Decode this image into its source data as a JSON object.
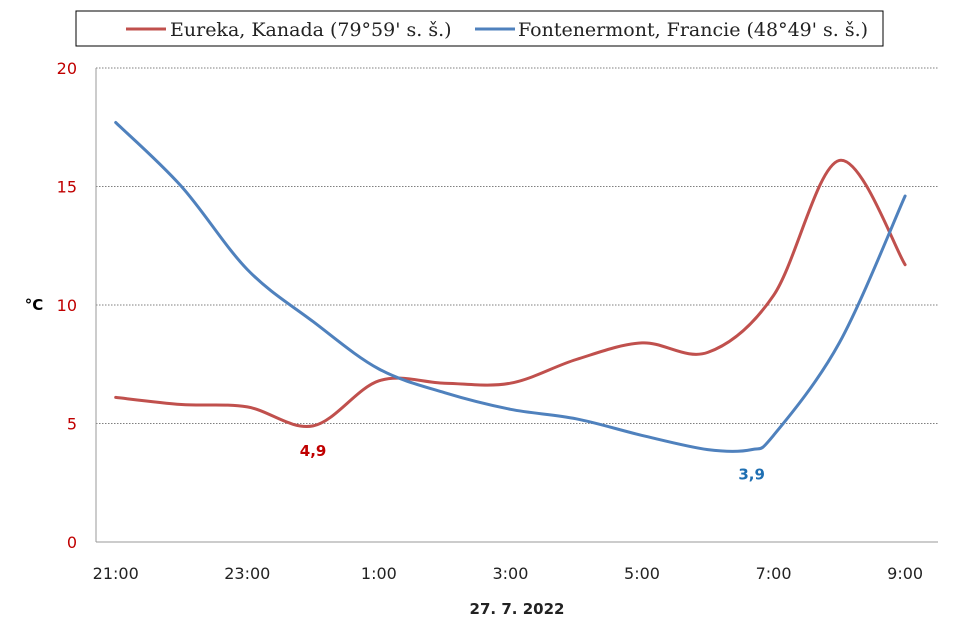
{
  "chart_data": {
    "type": "line",
    "title": "",
    "xlabel": "27. 7. 2022",
    "ylabel": "°C",
    "ylim": [
      0,
      20
    ],
    "yticks": [
      "0",
      "5",
      "10",
      "15",
      "20"
    ],
    "xlim_hours": [
      20.7,
      33.5
    ],
    "xticks": [
      "21:00",
      "23:00",
      "1:00",
      "3:00",
      "5:00",
      "7:00",
      "9:00"
    ],
    "grid": "horizontal dotted",
    "legend_position": "top",
    "series": [
      {
        "name": "Eureka, Kanada (79°59' s. š.)",
        "color": "#c0504d",
        "points": [
          {
            "t": "21:00",
            "y": 6.1
          },
          {
            "t": "22:00",
            "y": 5.8
          },
          {
            "t": "23:00",
            "y": 5.7
          },
          {
            "t": "0:00",
            "y": 4.9
          },
          {
            "t": "1:00",
            "y": 6.8
          },
          {
            "t": "2:00",
            "y": 6.7
          },
          {
            "t": "3:00",
            "y": 6.7
          },
          {
            "t": "4:00",
            "y": 7.7
          },
          {
            "t": "5:00",
            "y": 8.4
          },
          {
            "t": "6:00",
            "y": 8.0
          },
          {
            "t": "7:00",
            "y": 10.4
          },
          {
            "t": "8:00",
            "y": 16.1
          },
          {
            "t": "9:00",
            "y": 11.7
          }
        ]
      },
      {
        "name": "Fontenermont, Francie (48°49' s. š.)",
        "color": "#4f81bd",
        "points": [
          {
            "t": "21:00",
            "y": 17.7
          },
          {
            "t": "22:00",
            "y": 15.0
          },
          {
            "t": "23:00",
            "y": 11.5
          },
          {
            "t": "0:00",
            "y": 9.3
          },
          {
            "t": "1:00",
            "y": 7.3
          },
          {
            "t": "2:00",
            "y": 6.3
          },
          {
            "t": "3:00",
            "y": 5.6
          },
          {
            "t": "4:00",
            "y": 5.2
          },
          {
            "t": "5:00",
            "y": 4.5
          },
          {
            "t": "6:00",
            "y": 3.9
          },
          {
            "t": "6:40",
            "y": 3.9
          },
          {
            "t": "7:00",
            "y": 4.5
          },
          {
            "t": "8:00",
            "y": 8.4
          },
          {
            "t": "9:00",
            "y": 14.6
          }
        ]
      }
    ],
    "annotations": [
      {
        "text": "4,9",
        "series": 0,
        "t": "0:00",
        "y": 4.9,
        "color": "#c00000"
      },
      {
        "text": "3,9",
        "series": 1,
        "t": "6:40",
        "y": 3.9,
        "color": "#1f6fb2"
      }
    ],
    "colors": {
      "axis_text": "#c00000",
      "x_text": "#222222"
    }
  }
}
